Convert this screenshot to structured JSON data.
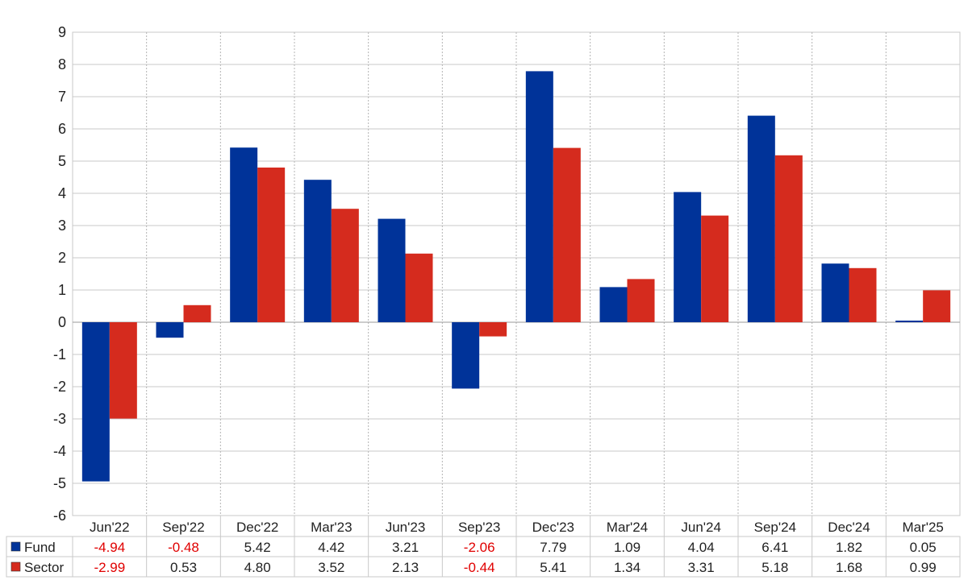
{
  "chart_data": {
    "type": "bar",
    "categories": [
      "Jun'22",
      "Sep'22",
      "Dec'22",
      "Mar'23",
      "Jun'23",
      "Sep'23",
      "Dec'23",
      "Mar'24",
      "Jun'24",
      "Sep'24",
      "Dec'24",
      "Mar'25"
    ],
    "series": [
      {
        "name": "Fund",
        "color": "#003399",
        "values": [
          -4.94,
          -0.48,
          5.42,
          4.42,
          3.21,
          -2.06,
          7.79,
          1.09,
          4.04,
          6.41,
          1.82,
          0.05
        ]
      },
      {
        "name": "Sector",
        "color": "#d52b1e",
        "values": [
          -2.99,
          0.53,
          4.8,
          3.52,
          2.13,
          -0.44,
          5.41,
          1.34,
          3.31,
          5.18,
          1.68,
          0.99
        ]
      }
    ],
    "table_rows": [
      {
        "label": "Fund",
        "cells": [
          "-4.94",
          "-0.48",
          "5.42",
          "4.42",
          "3.21",
          "-2.06",
          "7.79",
          "1.09",
          "4.04",
          "6.41",
          "1.82",
          "0.05"
        ]
      },
      {
        "label": "Sector",
        "cells": [
          "-2.99",
          "0.53",
          "4.80",
          "3.52",
          "2.13",
          "-0.44",
          "5.41",
          "1.34",
          "3.31",
          "5.18",
          "1.68",
          "0.99"
        ]
      }
    ],
    "yticks": [
      "9",
      "8",
      "7",
      "6",
      "5",
      "4",
      "3",
      "2",
      "1",
      "0",
      "-1",
      "-2",
      "-3",
      "-4",
      "-5",
      "-6"
    ],
    "ylim": [
      -6,
      9
    ],
    "grid": true,
    "negative_color": "#e00000",
    "title": "",
    "xlabel": "",
    "ylabel": ""
  }
}
